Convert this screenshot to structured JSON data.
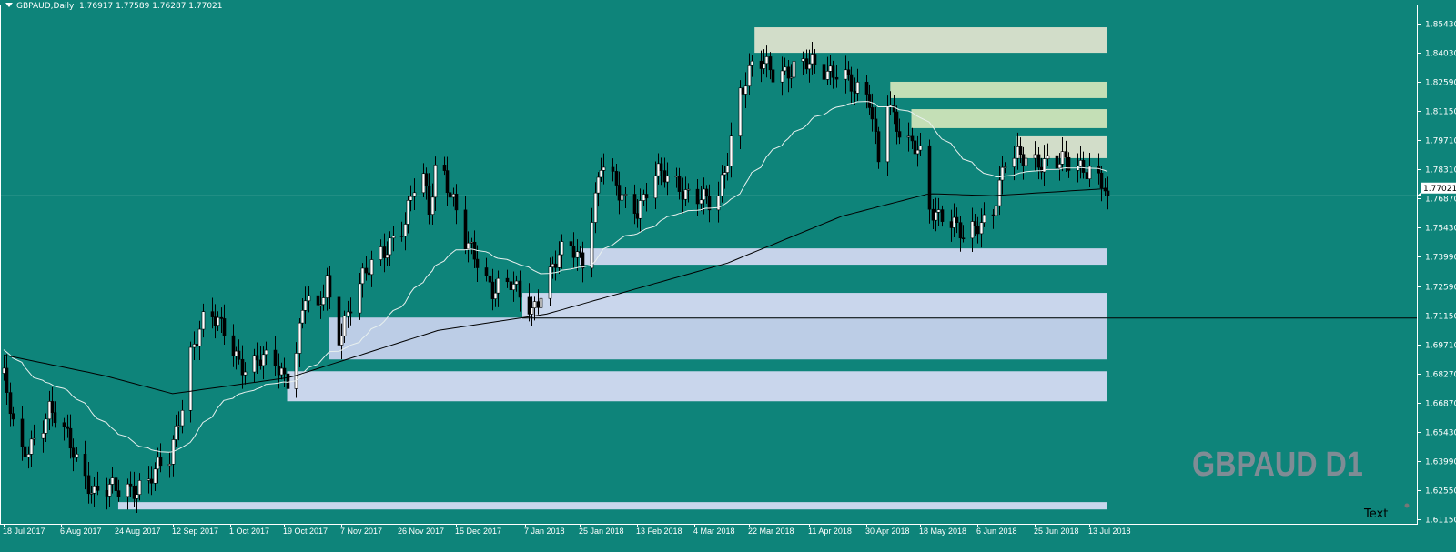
{
  "header": {
    "symbol": "GBPAUD,Daily",
    "ohlc": "1.76917 1.77589 1.76287 1.77021"
  },
  "watermark": "GBPAUD D1",
  "text_object": "Text",
  "colors": {
    "background": "#0e847a",
    "axis": "#ffffff",
    "ma_fast": "#e8f0ee",
    "ma_slow": "#000000",
    "demand_zone": "#c9d6ec",
    "supply_zone": "#c9dfc0",
    "watermark": "#7f8c95"
  },
  "chart_data": {
    "type": "candlestick",
    "symbol": "GBPAUD",
    "timeframe": "Daily",
    "last_price": 1.77021,
    "ylim": [
      1.6085,
      1.8615
    ],
    "y_ticks": [
      "1.85430",
      "1.84030",
      "1.82590",
      "1.81150",
      "1.79710",
      "1.78310",
      "1.76870",
      "1.75430",
      "1.73990",
      "1.72590",
      "1.71150",
      "1.69710",
      "1.68270",
      "1.66870",
      "1.65430",
      "1.63990",
      "1.62550",
      "1.61150"
    ],
    "x_ticks": [
      "18 Jul 2017",
      "6 Aug 2017",
      "24 Aug 2017",
      "12 Sep 2017",
      "1 Oct 2017",
      "19 Oct 2017",
      "7 Nov 2017",
      "26 Nov 2017",
      "15 Dec 2017",
      "7 Jan 2018",
      "25 Jan 2018",
      "13 Feb 2018",
      "4 Mar 2018",
      "22 Mar 2018",
      "11 Apr 2018",
      "30 Apr 2018",
      "18 May 2018",
      "6 Jun 2018",
      "25 Jun 2018",
      "13 Jul 2018"
    ],
    "x_tick_dates": [
      "2017-07-18",
      "2017-08-06",
      "2017-08-24",
      "2017-09-12",
      "2017-10-01",
      "2017-10-19",
      "2017-11-07",
      "2017-11-26",
      "2017-12-15",
      "2018-01-07",
      "2018-01-25",
      "2018-02-13",
      "2018-03-04",
      "2018-03-22",
      "2018-04-11",
      "2018-04-30",
      "2018-05-18",
      "2018-06-06",
      "2018-06-25",
      "2018-07-13"
    ],
    "close_path": [
      [
        "2017-07-18",
        1.68
      ],
      [
        "2017-07-23",
        1.64
      ],
      [
        "2017-08-02",
        1.665
      ],
      [
        "2017-08-10",
        1.645
      ],
      [
        "2017-08-17",
        1.625
      ],
      [
        "2017-08-25",
        1.625
      ],
      [
        "2017-09-03",
        1.63
      ],
      [
        "2017-09-11",
        1.64
      ],
      [
        "2017-09-15",
        1.67
      ],
      [
        "2017-09-18",
        1.695
      ],
      [
        "2017-09-23",
        1.71
      ],
      [
        "2017-09-29",
        1.705
      ],
      [
        "2017-10-06",
        1.685
      ],
      [
        "2017-10-15",
        1.69
      ],
      [
        "2017-10-21",
        1.68
      ],
      [
        "2017-10-26",
        1.72
      ],
      [
        "2017-10-30",
        1.71
      ],
      [
        "2017-11-02",
        1.73
      ],
      [
        "2017-11-05",
        1.7
      ],
      [
        "2017-11-10",
        1.715
      ],
      [
        "2017-11-18",
        1.74
      ],
      [
        "2017-11-24",
        1.75
      ],
      [
        "2017-11-28",
        1.755
      ],
      [
        "2017-12-03",
        1.785
      ],
      [
        "2017-12-06",
        1.765
      ],
      [
        "2017-12-09",
        1.795
      ],
      [
        "2017-12-13",
        1.77
      ],
      [
        "2017-12-18",
        1.745
      ],
      [
        "2017-12-22",
        1.74
      ],
      [
        "2017-12-27",
        1.725
      ],
      [
        "2018-01-02",
        1.725
      ],
      [
        "2018-01-09",
        1.715
      ],
      [
        "2018-01-14",
        1.73
      ],
      [
        "2018-01-21",
        1.745
      ],
      [
        "2018-01-26",
        1.74
      ],
      [
        "2018-02-01",
        1.785
      ],
      [
        "2018-02-07",
        1.77
      ],
      [
        "2018-02-13",
        1.765
      ],
      [
        "2018-02-19",
        1.78
      ],
      [
        "2018-02-27",
        1.775
      ],
      [
        "2018-03-06",
        1.77
      ],
      [
        "2018-03-11",
        1.76
      ],
      [
        "2018-03-15",
        1.79
      ],
      [
        "2018-03-18",
        1.82
      ],
      [
        "2018-03-24",
        1.835
      ],
      [
        "2018-03-30",
        1.83
      ],
      [
        "2018-04-08",
        1.835
      ],
      [
        "2018-04-16",
        1.83
      ],
      [
        "2018-04-22",
        1.835
      ],
      [
        "2018-04-26",
        1.82
      ],
      [
        "2018-05-01",
        1.815
      ],
      [
        "2018-05-04",
        1.79
      ],
      [
        "2018-05-07",
        1.82
      ],
      [
        "2018-05-12",
        1.795
      ],
      [
        "2018-05-18",
        1.79
      ],
      [
        "2018-05-21",
        1.765
      ],
      [
        "2018-05-27",
        1.76
      ],
      [
        "2018-06-02",
        1.745
      ],
      [
        "2018-06-05",
        1.755
      ],
      [
        "2018-06-11",
        1.765
      ],
      [
        "2018-06-15",
        1.785
      ],
      [
        "2018-06-23",
        1.79
      ],
      [
        "2018-07-02",
        1.785
      ],
      [
        "2018-07-08",
        1.785
      ],
      [
        "2018-07-14",
        1.785
      ],
      [
        "2018-07-19",
        1.77021
      ]
    ],
    "ma_slow_path": [
      [
        "2017-07-18",
        1.692
      ],
      [
        "2017-08-20",
        1.682
      ],
      [
        "2017-09-12",
        1.673
      ],
      [
        "2017-10-21",
        1.681
      ],
      [
        "2017-12-09",
        1.704
      ],
      [
        "2018-01-14",
        1.712
      ],
      [
        "2018-03-15",
        1.737
      ],
      [
        "2018-04-22",
        1.76
      ],
      [
        "2018-05-21",
        1.771
      ],
      [
        "2018-06-11",
        1.77
      ],
      [
        "2018-07-19",
        1.7735
      ]
    ],
    "zones": [
      {
        "kind": "supply",
        "from": "2018-03-24",
        "top": 1.8525,
        "bottom": 1.84,
        "color": "#d2ddc9"
      },
      {
        "kind": "supply",
        "from": "2018-05-08",
        "top": 1.8258,
        "bottom": 1.8178,
        "color": "#c4dfb6"
      },
      {
        "kind": "supply",
        "from": "2018-05-15",
        "top": 1.8124,
        "bottom": 1.8031,
        "color": "#c4dfb6"
      },
      {
        "kind": "supply",
        "from": "2018-06-19",
        "top": 1.7991,
        "bottom": 1.7884,
        "color": "#d2ddc9"
      },
      {
        "kind": "demand",
        "from": "2018-01-25",
        "top": 1.7442,
        "bottom": 1.7362,
        "color": "#c6d3ea"
      },
      {
        "kind": "demand",
        "from": "2018-01-06",
        "top": 1.7224,
        "bottom": 1.7103,
        "color": "#c9d6ec"
      },
      {
        "kind": "demand",
        "from": "2017-11-03",
        "top": 1.7103,
        "bottom": 1.6898,
        "color": "#bccde6"
      },
      {
        "kind": "demand",
        "from": "2017-10-20",
        "top": 1.684,
        "bottom": 1.6693,
        "color": "#c9d6ec"
      },
      {
        "kind": "demand",
        "from": "2017-08-25",
        "top": 1.6199,
        "bottom": 1.6163,
        "color": "#c9d6ec"
      }
    ],
    "zones_end": "2018-07-19",
    "hline": {
      "price": 1.7103,
      "from": "2018-01-06"
    }
  }
}
